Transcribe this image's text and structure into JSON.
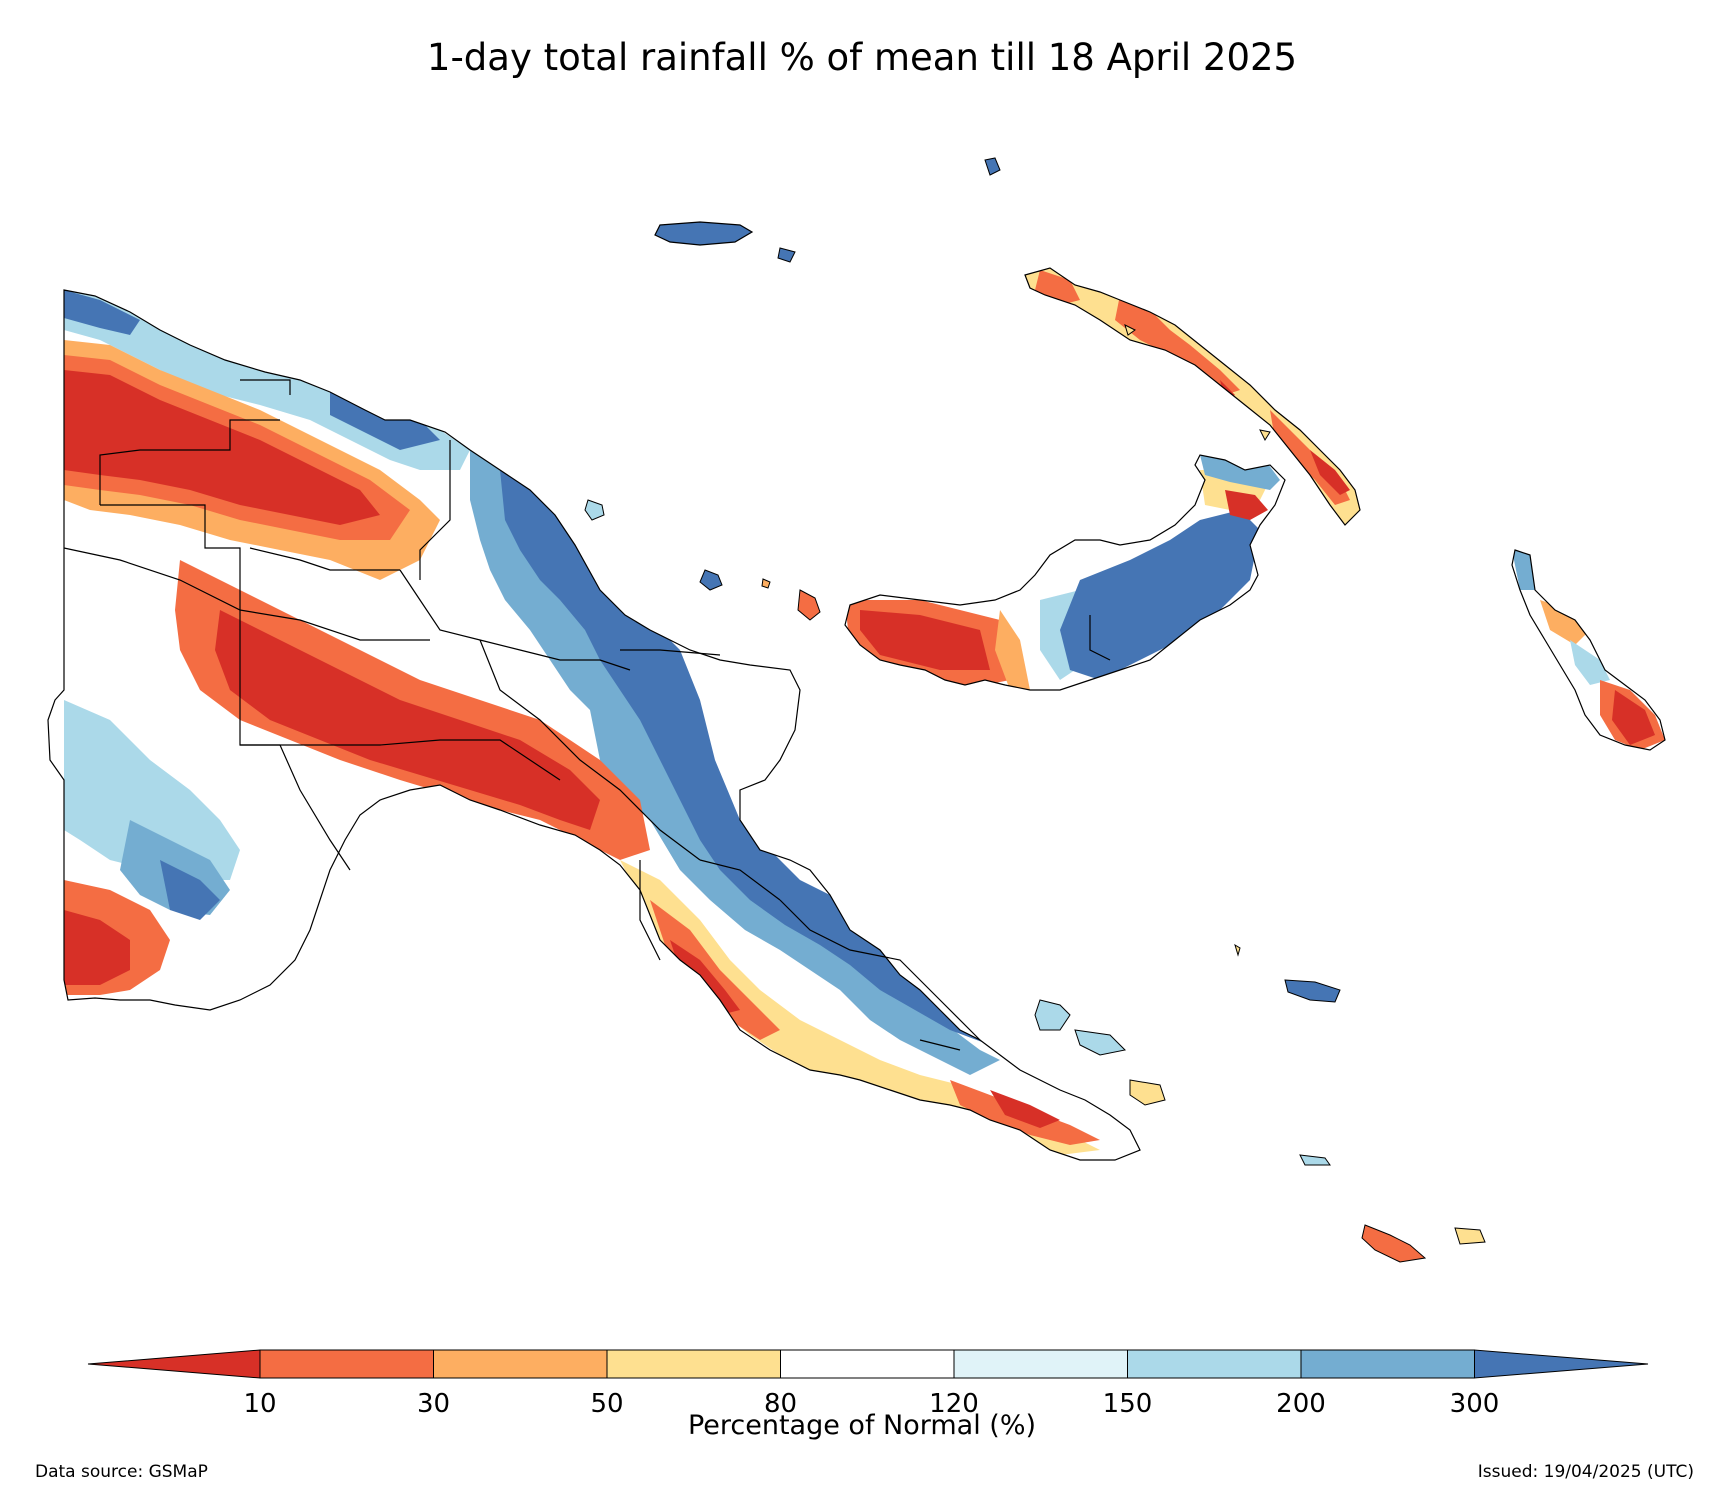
{
  "title": "1-day total rainfall % of mean till 18 April 2025",
  "colorbar": {
    "label": "Percentage of Normal (%)",
    "ticks": [
      "10",
      "30",
      "50",
      "80",
      "120",
      "150",
      "200",
      "300"
    ],
    "colors": {
      "lt10": "#d73027",
      "10-30": "#f46d43",
      "30-50": "#fdae61",
      "50-80": "#fee090",
      "80-120": "#ffffff",
      "120-150": "#e0f3f8",
      "150-200": "#abd9e9",
      "200-300": "#74add1",
      "gt300": "#4575b4"
    }
  },
  "footer": {
    "source": "Data source: GSMaP",
    "issued": "Issued: 19/04/2025 (UTC)"
  }
}
